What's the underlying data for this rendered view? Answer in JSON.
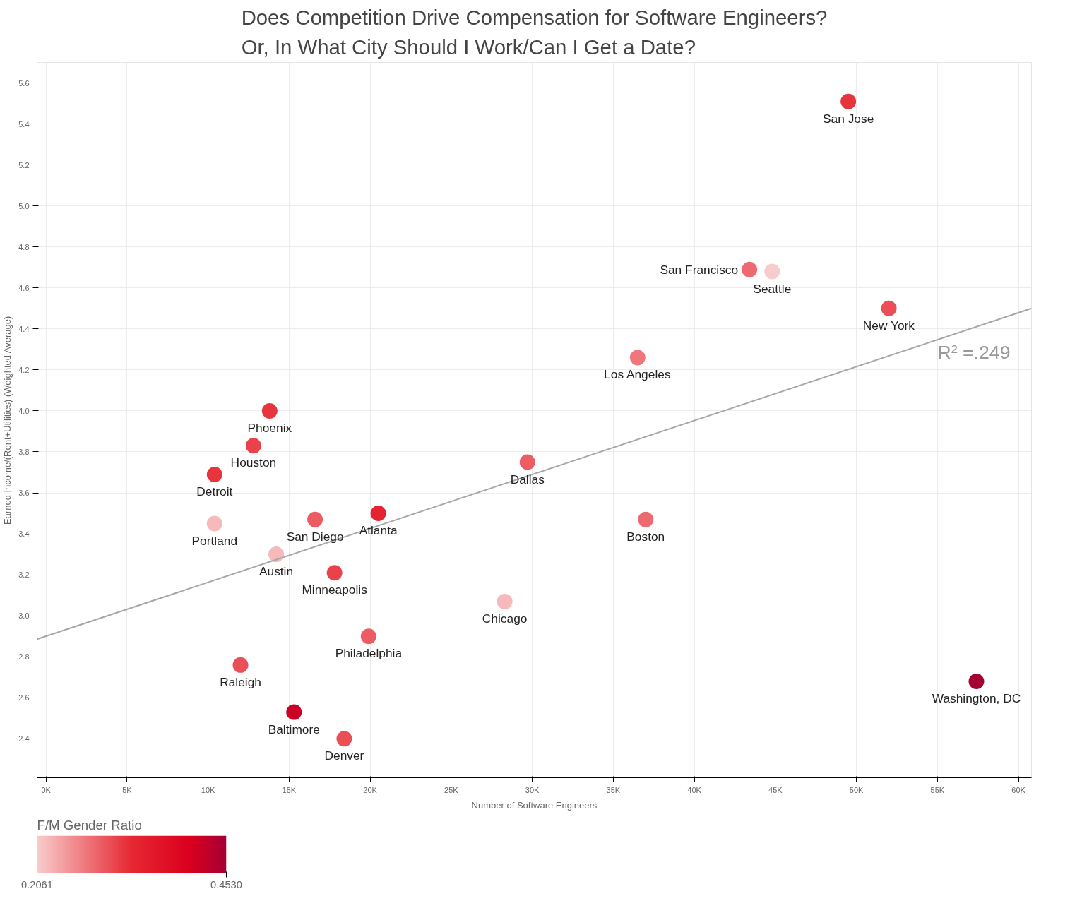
{
  "chart_data": {
    "type": "scatter",
    "title": "Does Competition Drive Compensation for Software Engineers?\nOr, In What City Should I Work/Can I Get a Date?",
    "xlabel": "Number of Software Engineers",
    "ylabel": "Earned Income/(Rent+Utilities) (Weighted Average)",
    "clabel": "F/M Gender Ratio",
    "clim": [
      0.2061,
      0.453
    ],
    "cticks": [
      0.2061,
      {
        "value": 0.453,
        "label": "0.4530"
      }
    ],
    "xlim": [
      -0.55,
      60.8
    ],
    "ylim": [
      2.21,
      5.7
    ],
    "xticks": [
      {
        "value": 0,
        "label": "0K"
      },
      {
        "value": 5,
        "label": "5K"
      },
      {
        "value": 10,
        "label": "10K"
      },
      {
        "value": 15,
        "label": "15K"
      },
      {
        "value": 20,
        "label": "20K"
      },
      {
        "value": 25,
        "label": "25K"
      },
      {
        "value": 30,
        "label": "30K"
      },
      {
        "value": 35,
        "label": "35K"
      },
      {
        "value": 40,
        "label": "40K"
      },
      {
        "value": 45,
        "label": "45K"
      },
      {
        "value": 50,
        "label": "50K"
      },
      {
        "value": 55,
        "label": "55K"
      },
      {
        "value": 60,
        "label": "60K"
      }
    ],
    "yticks": [
      2.4,
      2.6,
      2.8,
      {
        "value": 3.0,
        "label": "3.0"
      },
      3.2,
      3.4,
      3.6,
      3.8,
      {
        "value": 4.0,
        "label": "4.0"
      },
      4.2,
      4.4,
      4.6,
      4.8,
      {
        "value": 5.0,
        "label": "5.0"
      },
      5.2,
      5.4,
      5.6
    ],
    "grid": true,
    "series": [
      {
        "marker": "circle",
        "x": [
          49.5,
          43.4,
          44.8,
          52.0,
          36.5,
          13.8,
          12.8,
          10.4,
          29.7,
          10.4,
          16.6,
          20.5,
          37.0,
          14.2,
          17.8,
          28.3,
          19.9,
          12.0,
          15.3,
          18.4,
          57.4
        ],
        "values": [
          5.51,
          4.69,
          4.68,
          4.5,
          4.26,
          4.0,
          3.83,
          3.69,
          3.75,
          3.45,
          3.47,
          3.5,
          3.47,
          3.3,
          3.21,
          3.07,
          2.9,
          2.76,
          2.53,
          2.4,
          2.68
        ],
        "colors": [
          "#e7353e",
          "#ed6a70",
          "#f8cccc",
          "#ea4f57",
          "#ef777c",
          "#e7353e",
          "#e9424a",
          "#e7353e",
          "#ec5c63",
          "#f6babb",
          "#ec5c63",
          "#e5222f",
          "#ed6a70",
          "#f6babb",
          "#e9424a",
          "#f6babb",
          "#ec5c63",
          "#ea4f57",
          "#ca0025",
          "#ea4f57",
          "#a50034"
        ]
      },
      {
        "type": "line",
        "x": [
          -0.55,
          60.8
        ],
        "values": [
          2.886,
          4.5
        ],
        "color": "#a6a6a6"
      }
    ],
    "annotations": [
      {
        "text": "San Jose",
        "x": 49.5,
        "y": 5.51
      },
      {
        "text": "San Francisco",
        "x": 43.4,
        "y": 4.69
      },
      {
        "text": "Seattle",
        "x": 44.8,
        "y": 4.68
      },
      {
        "text": "New York",
        "x": 52.0,
        "y": 4.5
      },
      {
        "text": "Los Angeles",
        "x": 36.5,
        "y": 4.26
      },
      {
        "text": "Phoenix",
        "x": 13.8,
        "y": 4.0
      },
      {
        "text": "Houston",
        "x": 12.8,
        "y": 3.83
      },
      {
        "text": "Detroit",
        "x": 10.4,
        "y": 3.69
      },
      {
        "text": "Dallas",
        "x": 29.7,
        "y": 3.75
      },
      {
        "text": "Portland",
        "x": 10.4,
        "y": 3.45
      },
      {
        "text": "San Diego",
        "x": 16.6,
        "y": 3.47
      },
      {
        "text": "Atlanta",
        "x": 20.5,
        "y": 3.5
      },
      {
        "text": "Boston",
        "x": 37.0,
        "y": 3.47
      },
      {
        "text": "Austin",
        "x": 14.2,
        "y": 3.3
      },
      {
        "text": "Minneapolis",
        "x": 17.8,
        "y": 3.21
      },
      {
        "text": "Chicago",
        "x": 28.3,
        "y": 3.07
      },
      {
        "text": "Philadelphia",
        "x": 19.9,
        "y": 2.9
      },
      {
        "text": "Raleigh",
        "x": 12.0,
        "y": 2.76
      },
      {
        "text": "Baltimore",
        "x": 15.3,
        "y": 2.53
      },
      {
        "text": "Denver",
        "x": 18.4,
        "y": 2.4
      },
      {
        "text": "Washington, DC",
        "x": 57.4,
        "y": 2.68
      },
      "R² =.249"
    ]
  }
}
